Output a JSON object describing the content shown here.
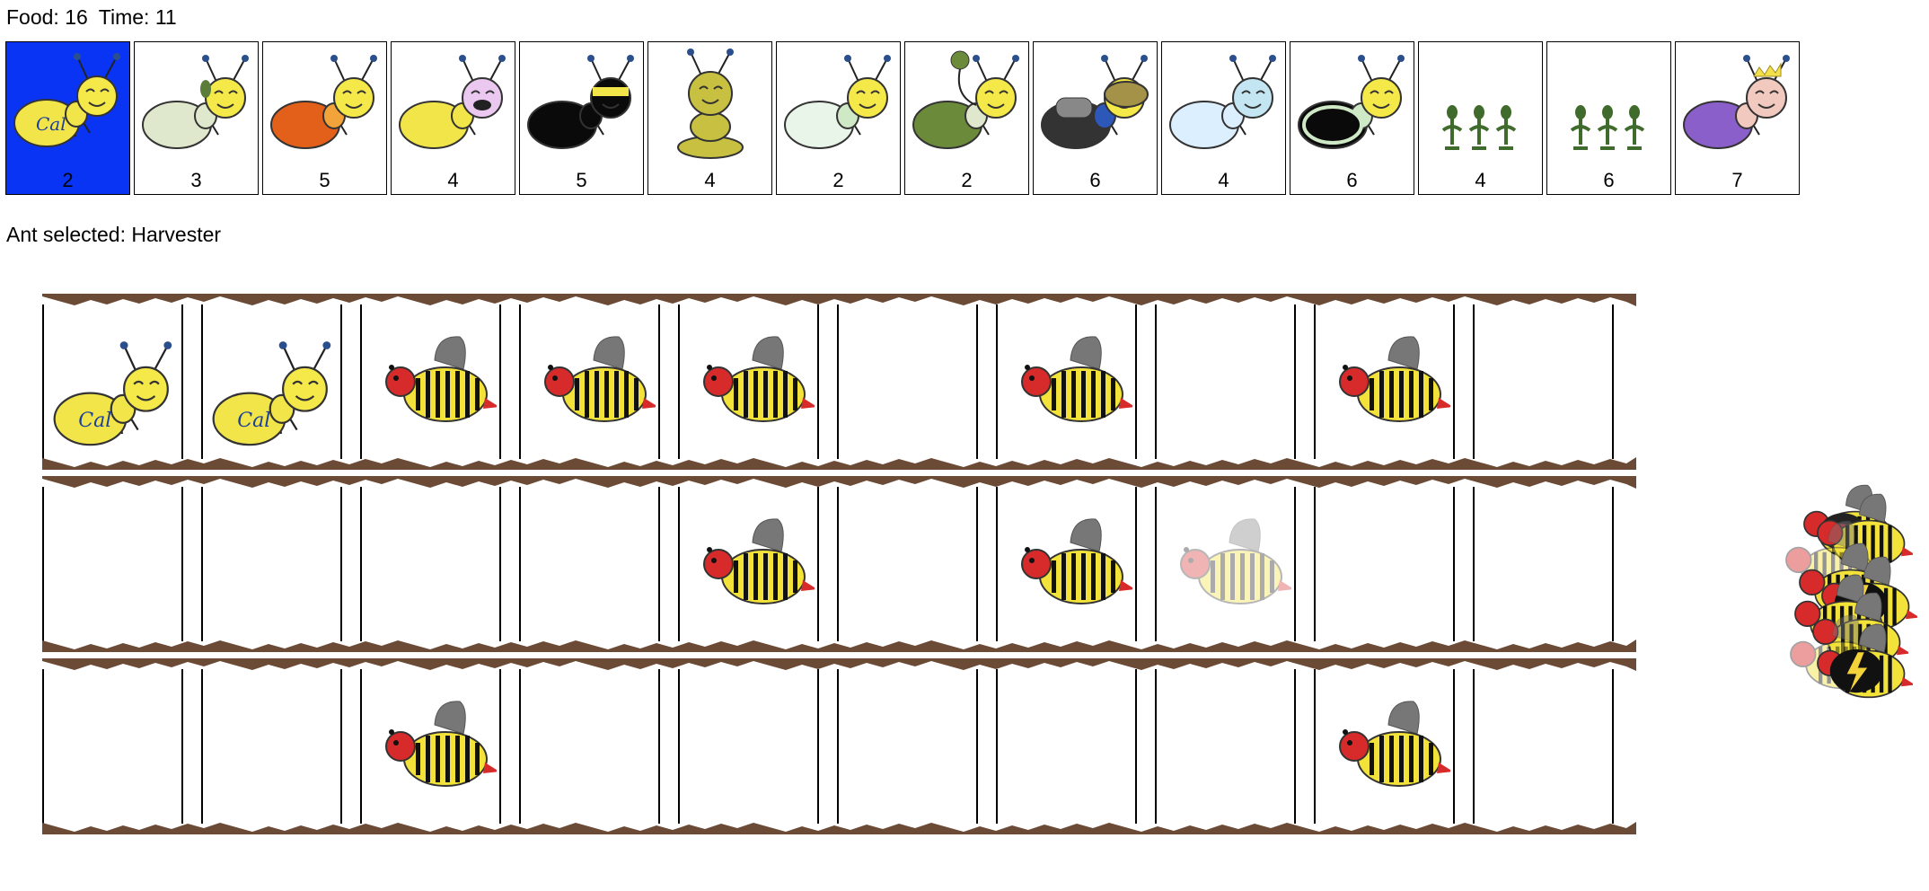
{
  "status": {
    "food_label": "Food: 16",
    "time_label": "Time: 11"
  },
  "selected_label": "Ant selected: Harvester",
  "ant_cards": [
    {
      "name": "harvester-ant",
      "cost": "2",
      "selected": true,
      "icon": "harvester",
      "body": "#f2e54a"
    },
    {
      "name": "thrower-ant",
      "cost": "3",
      "icon": "thrower",
      "body": "#dfe8cc"
    },
    {
      "name": "fire-ant",
      "cost": "5",
      "icon": "fire",
      "body": "#e2601a"
    },
    {
      "name": "hungry-ant",
      "cost": "4",
      "icon": "hungry",
      "body": "#f2e54a"
    },
    {
      "name": "ninja-ant",
      "cost": "5",
      "icon": "ninja",
      "body": "#0a0a0a"
    },
    {
      "name": "wall-ant",
      "cost": "4",
      "icon": "wall",
      "body": "#c8c040"
    },
    {
      "name": "short-thrower-ant",
      "cost": "2",
      "icon": "short",
      "body": "#eaf5ea"
    },
    {
      "name": "long-thrower-ant",
      "cost": "2",
      "icon": "long",
      "body": "#6b8a3a"
    },
    {
      "name": "bodyguard-ant",
      "cost": "6",
      "icon": "bodyguard",
      "body": "#333333"
    },
    {
      "name": "slow-thrower-ant",
      "cost": "4",
      "icon": "slow",
      "body": "#dcefff"
    },
    {
      "name": "scary-thrower-ant",
      "cost": "6",
      "icon": "scary",
      "body": "#0a0a0a"
    },
    {
      "name": "weeds-card",
      "cost": "4",
      "icon": "weeds",
      "body": "#3f6b2c"
    },
    {
      "name": "weeds-card-2",
      "cost": "6",
      "icon": "weeds",
      "body": "#3f6b2c"
    },
    {
      "name": "queen-ant",
      "cost": "7",
      "icon": "queen",
      "body": "#8a5fc9"
    }
  ],
  "tunnels": [
    [
      "harvester",
      "harvester",
      "bee",
      "bee",
      "bee",
      "",
      "bee",
      "",
      "bee",
      ""
    ],
    [
      "",
      "",
      "",
      "",
      "bee",
      "",
      "bee",
      "bee-faded",
      "",
      ""
    ],
    [
      "",
      "",
      "bee",
      "",
      "",
      "",
      "",
      "",
      "bee",
      ""
    ]
  ],
  "hive": {
    "label_icons": [
      "stanford-s-icon",
      "lightning-icon",
      "lightning-icon"
    ]
  },
  "colors": {
    "selected_card": "#0a34f3",
    "dirt": "#6b4a36",
    "bee_stripe": "#111111",
    "bee_body": "#f2e23a",
    "bee_head": "#d72a2a"
  }
}
